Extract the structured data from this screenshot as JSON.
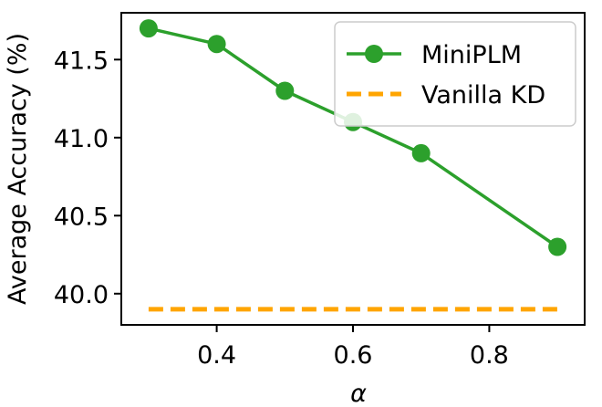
{
  "chart_data": {
    "type": "line",
    "xlabel": "α",
    "ylabel": "Average Accuracy (%)",
    "xlim": [
      0.26,
      0.94
    ],
    "ylim": [
      39.8,
      41.8
    ],
    "xticks": [
      0.4,
      0.6,
      0.8
    ],
    "xtick_labels": [
      "0.4",
      "0.6",
      "0.8"
    ],
    "yticks": [
      40.0,
      40.5,
      41.0,
      41.5
    ],
    "ytick_labels": [
      "40.0",
      "40.5",
      "41.0",
      "41.5"
    ],
    "grid": false,
    "legend_position": "top-right",
    "series": [
      {
        "name": "MiniPLM",
        "style": "solid-line-with-circle-markers",
        "color": "#2ca02c",
        "x": [
          0.3,
          0.4,
          0.5,
          0.6,
          0.7,
          0.9
        ],
        "values": [
          41.7,
          41.6,
          41.3,
          41.1,
          40.9,
          40.3
        ]
      },
      {
        "name": "Vanilla KD",
        "style": "dashed-line",
        "color": "#ffa500",
        "x": [
          0.3,
          0.9
        ],
        "values": [
          39.9,
          39.9
        ]
      }
    ]
  }
}
